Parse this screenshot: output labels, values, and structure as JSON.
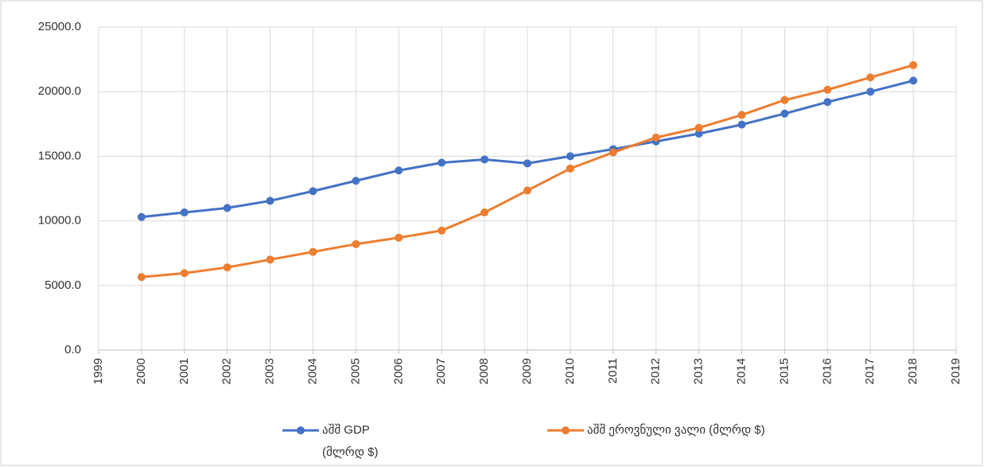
{
  "chart_data": {
    "type": "line",
    "x": [
      2000,
      2001,
      2002,
      2003,
      2004,
      2005,
      2006,
      2007,
      2008,
      2009,
      2010,
      2011,
      2012,
      2013,
      2014,
      2015,
      2016,
      2017,
      2018
    ],
    "series": [
      {
        "name": "აშშ GDP (მლრდ $)",
        "color": "#4472c4",
        "values": [
          10300,
          10650,
          11000,
          11550,
          12300,
          13100,
          13900,
          14500,
          14750,
          14450,
          15000,
          15550,
          16150,
          16750,
          17450,
          18300,
          19200,
          20000,
          20850
        ]
      },
      {
        "name": "აშშ ეროვნული ვალი (მლრდ $)",
        "color": "#ed7d31",
        "values": [
          5650,
          5950,
          6400,
          7000,
          7600,
          8200,
          8700,
          9250,
          10650,
          12350,
          14050,
          15300,
          16450,
          17200,
          18200,
          19350,
          20150,
          21100,
          22050
        ]
      }
    ],
    "xlim": [
      1999,
      2019
    ],
    "xticks": [
      1999,
      2000,
      2001,
      2002,
      2003,
      2004,
      2005,
      2006,
      2007,
      2008,
      2009,
      2010,
      2011,
      2012,
      2013,
      2014,
      2015,
      2016,
      2017,
      2018,
      2019
    ],
    "ylim": [
      0,
      25000
    ],
    "yticks": [
      {
        "value": 0,
        "label": "0.0"
      },
      {
        "value": 5000,
        "label": "5000.0"
      },
      {
        "value": 10000,
        "label": "10000.0"
      },
      {
        "value": 15000,
        "label": "15000.0"
      },
      {
        "value": 20000,
        "label": "20000.0"
      },
      {
        "value": 25000,
        "label": "25000.0"
      }
    ],
    "grid": true
  }
}
